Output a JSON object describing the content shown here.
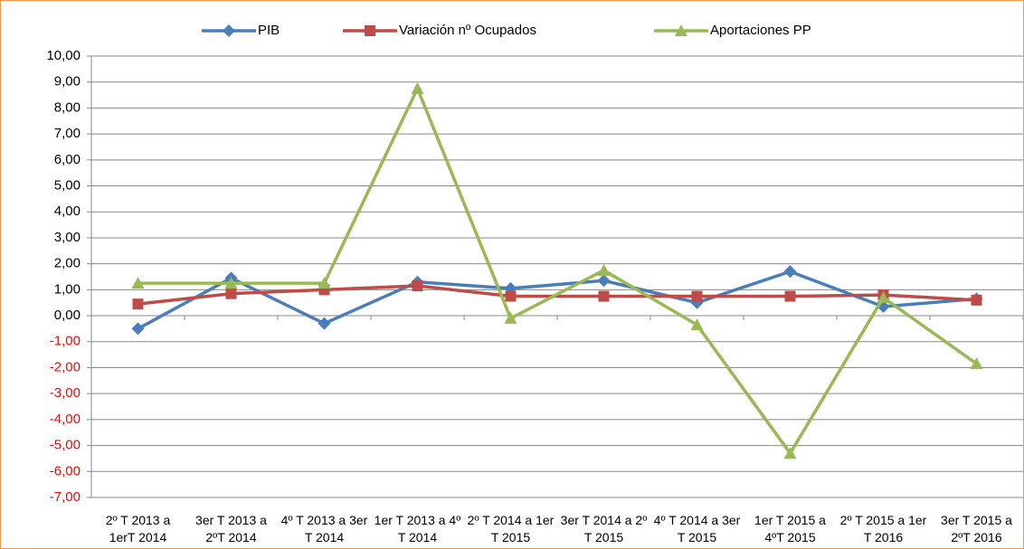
{
  "chart_data": {
    "type": "line",
    "categories": [
      "2º  T 2013 a 1erT 2014",
      "3er T 2013 a 2ºT 2014",
      "4º T 2013 a 3er T 2014",
      "1er  T 2013 a 4º T 2014",
      "2º  T 2014 a 1er T 2015",
      "3er  T 2014 a 2º T 2015",
      "4º  T 2014 a 3er T 2015",
      "1er T 2015 a 4ºT 2015",
      "2º  T 2015 a 1er T 2016",
      "3er T 2015 a 2ºT 2016"
    ],
    "series": [
      {
        "name": "PIB",
        "color": "#4a7ebb",
        "marker": "diamond",
        "values": [
          -0.5,
          1.45,
          -0.3,
          1.3,
          1.05,
          1.35,
          0.5,
          1.7,
          0.35,
          0.65
        ]
      },
      {
        "name": "Variación nº Ocupados",
        "color": "#be4b48",
        "marker": "square",
        "values": [
          0.45,
          0.85,
          1.0,
          1.15,
          0.75,
          0.75,
          0.75,
          0.75,
          0.8,
          0.6
        ]
      },
      {
        "name": "Aportaciones PP",
        "color": "#98b954",
        "marker": "triangle",
        "values": [
          1.25,
          1.25,
          1.25,
          8.75,
          -0.1,
          1.75,
          -0.35,
          -5.3,
          0.7,
          -1.85
        ]
      }
    ],
    "ylim": [
      -7,
      10
    ],
    "yticks": [
      {
        "value": -7,
        "label": "-7,00"
      },
      {
        "value": -6,
        "label": "-6,00"
      },
      {
        "value": -5,
        "label": "-5,00"
      },
      {
        "value": -4,
        "label": "-4,00"
      },
      {
        "value": -3,
        "label": "-3,00"
      },
      {
        "value": -2,
        "label": "-2,00"
      },
      {
        "value": -1,
        "label": "-1,00"
      },
      {
        "value": 0,
        "label": "0,00"
      },
      {
        "value": 1,
        "label": "1,00"
      },
      {
        "value": 2,
        "label": "2,00"
      },
      {
        "value": 3,
        "label": "3,00"
      },
      {
        "value": 4,
        "label": "4,00"
      },
      {
        "value": 5,
        "label": "5,00"
      },
      {
        "value": 6,
        "label": "6,00"
      },
      {
        "value": 7,
        "label": "7,00"
      },
      {
        "value": 8,
        "label": "8,00"
      },
      {
        "value": 9,
        "label": "9,00"
      },
      {
        "value": 10,
        "label": "10,00"
      }
    ],
    "negative_tick_color": "#ff0000",
    "grid": true,
    "legend": "top"
  }
}
